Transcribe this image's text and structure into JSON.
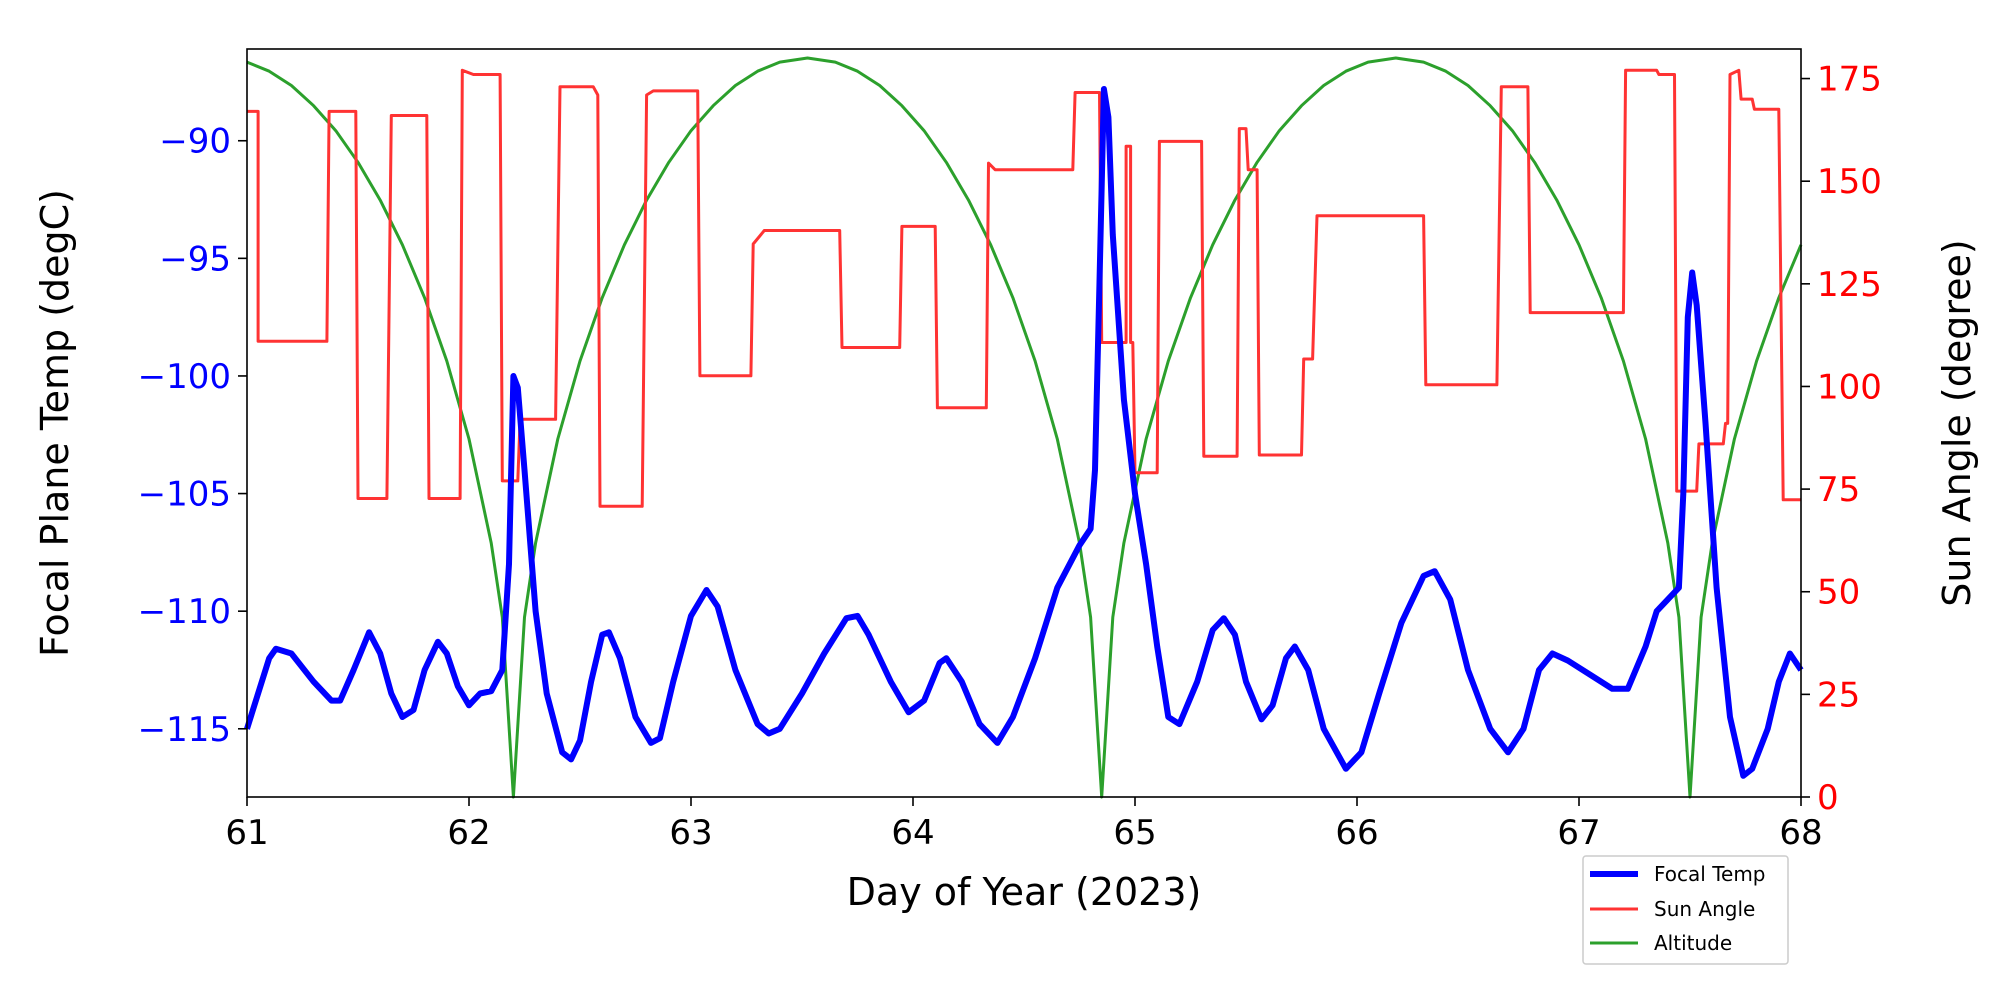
{
  "chart_data": {
    "type": "line",
    "xlabel": "Day of Year (2023)",
    "ylabel_left": "Focal Plane Temp (degC)",
    "ylabel_right": "Sun Angle (degree)",
    "xlim": [
      61,
      68
    ],
    "ylim_left": [
      -117.9,
      -86.1
    ],
    "ylim_right": [
      0,
      182.2
    ],
    "x_ticks": [
      61,
      62,
      63,
      64,
      65,
      66,
      67,
      68
    ],
    "y_ticks_left": [
      -90,
      -95,
      -100,
      -105,
      -110,
      -115
    ],
    "y_ticks_right": [
      0,
      25,
      50,
      75,
      100,
      125,
      150,
      175
    ],
    "left_axis_color": "#0000ff",
    "right_axis_color": "#ff0000",
    "grid": false,
    "legend_placement": "bottom-right, below plot",
    "series": [
      {
        "name": "Focal Temp",
        "axis": "left",
        "color": "#0000ff",
        "x": [
          61.0,
          61.1,
          61.13,
          61.2,
          61.3,
          61.38,
          61.42,
          61.48,
          61.55,
          61.6,
          61.65,
          61.7,
          61.75,
          61.8,
          61.86,
          61.9,
          61.95,
          62.0,
          62.05,
          62.1,
          62.15,
          62.18,
          62.2,
          62.22,
          62.25,
          62.3,
          62.35,
          62.42,
          62.46,
          62.5,
          62.55,
          62.6,
          62.63,
          62.68,
          62.75,
          62.82,
          62.86,
          62.92,
          63.0,
          63.07,
          63.12,
          63.2,
          63.3,
          63.35,
          63.4,
          63.5,
          63.6,
          63.7,
          63.75,
          63.8,
          63.9,
          63.98,
          64.05,
          64.12,
          64.15,
          64.22,
          64.3,
          64.38,
          64.45,
          64.55,
          64.65,
          64.75,
          64.8,
          64.82,
          64.84,
          64.86,
          64.88,
          64.9,
          64.95,
          65.0,
          65.05,
          65.1,
          65.15,
          65.2,
          65.28,
          65.35,
          65.4,
          65.45,
          65.5,
          65.57,
          65.62,
          65.68,
          65.72,
          65.78,
          65.85,
          65.95,
          66.02,
          66.1,
          66.2,
          66.3,
          66.35,
          66.42,
          66.5,
          66.6,
          66.68,
          66.75,
          66.82,
          66.88,
          66.95,
          67.05,
          67.15,
          67.22,
          67.3,
          67.35,
          67.4,
          67.45,
          67.47,
          67.49,
          67.51,
          67.53,
          67.57,
          67.62,
          67.68,
          67.74,
          67.78,
          67.85,
          67.9,
          67.95,
          68.0
        ],
        "y": [
          -115,
          -112,
          -111.6,
          -111.8,
          -113,
          -113.8,
          -113.8,
          -112.5,
          -110.9,
          -111.8,
          -113.5,
          -114.5,
          -114.2,
          -112.5,
          -111.3,
          -111.8,
          -113.2,
          -114,
          -113.5,
          -113.4,
          -112.5,
          -108,
          -100,
          -100.5,
          -104,
          -110,
          -113.5,
          -116,
          -116.3,
          -115.5,
          -113,
          -111,
          -110.9,
          -112,
          -114.5,
          -115.6,
          -115.4,
          -113,
          -110.2,
          -109.1,
          -109.8,
          -112.5,
          -114.8,
          -115.2,
          -115,
          -113.5,
          -111.8,
          -110.3,
          -110.2,
          -111,
          -113,
          -114.3,
          -113.8,
          -112.2,
          -112,
          -113,
          -114.8,
          -115.6,
          -114.5,
          -112,
          -109,
          -107.2,
          -106.5,
          -104,
          -96,
          -87.8,
          -89,
          -94,
          -101,
          -105,
          -108,
          -111.5,
          -114.5,
          -114.8,
          -113,
          -110.8,
          -110.3,
          -111,
          -113,
          -114.6,
          -114,
          -112,
          -111.5,
          -112.5,
          -115,
          -116.7,
          -116,
          -113.5,
          -110.5,
          -108.5,
          -108.3,
          -109.5,
          -112.5,
          -115,
          -116,
          -115,
          -112.5,
          -111.8,
          -112.1,
          -112.7,
          -113.3,
          -113.3,
          -111.5,
          -110,
          -109.5,
          -109,
          -105,
          -97.5,
          -95.6,
          -97,
          -102,
          -109,
          -114.5,
          -117,
          -116.7,
          -115,
          -113,
          -111.8,
          -112.5
        ]
      },
      {
        "name": "Sun Angle",
        "axis": "right",
        "color": "#ff3333",
        "x": [
          61.0,
          61.05,
          61.05,
          61.36,
          61.37,
          61.49,
          61.5,
          61.63,
          61.65,
          61.81,
          61.82,
          61.96,
          61.97,
          62.02,
          62.14,
          62.15,
          62.22,
          62.23,
          62.39,
          62.41,
          62.56,
          62.58,
          62.59,
          62.78,
          62.8,
          62.83,
          63.03,
          63.04,
          63.27,
          63.28,
          63.33,
          63.67,
          63.68,
          63.94,
          63.95,
          64.1,
          64.11,
          64.33,
          64.34,
          64.37,
          64.72,
          64.73,
          64.84,
          64.85,
          64.96,
          64.96,
          64.98,
          64.98,
          64.99,
          65.0,
          65.1,
          65.11,
          65.3,
          65.31,
          65.46,
          65.47,
          65.5,
          65.51,
          65.55,
          65.56,
          65.75,
          65.76,
          65.8,
          65.82,
          66.3,
          66.31,
          66.63,
          66.65,
          66.77,
          66.78,
          67.2,
          67.21,
          67.35,
          67.36,
          67.43,
          67.44,
          67.53,
          67.54,
          67.65,
          67.66,
          67.67,
          67.68,
          67.72,
          67.73,
          67.78,
          67.79,
          67.9,
          67.92,
          68.0
        ],
        "y": [
          167,
          167,
          111,
          111,
          167,
          167,
          72.7,
          72.7,
          166,
          166,
          72.7,
          72.7,
          177,
          176,
          176,
          77,
          77,
          92,
          92,
          173,
          173,
          171,
          70.8,
          70.8,
          171,
          172,
          172,
          102.6,
          102.6,
          134.7,
          138,
          138,
          109.5,
          109.5,
          139,
          139,
          94.8,
          94.8,
          154.4,
          152.8,
          152.8,
          171.6,
          171.6,
          110.7,
          110.7,
          158.5,
          158.5,
          110.7,
          110.7,
          79,
          79,
          159.7,
          159.7,
          83,
          83,
          162.8,
          162.8,
          152.8,
          152.8,
          83.3,
          83.3,
          106.7,
          106.7,
          141.6,
          141.6,
          100.4,
          100.4,
          173,
          173,
          118,
          118,
          177,
          177,
          176,
          176,
          74.5,
          74.5,
          86,
          86,
          91,
          91,
          176,
          177,
          170,
          170,
          167.5,
          167.5,
          72.4,
          72.4
        ]
      },
      {
        "name": "Altitude",
        "axis": "right",
        "color": "#2ca02c",
        "x": [
          61.0,
          61.1,
          61.2,
          61.3,
          61.4,
          61.5,
          61.6,
          61.7,
          61.8,
          61.9,
          62.0,
          62.1,
          62.15,
          62.2,
          62.25,
          62.3,
          62.4,
          62.5,
          62.6,
          62.7,
          62.8,
          62.9,
          63.0,
          63.1,
          63.2,
          63.3,
          63.4,
          63.525,
          63.65,
          63.75,
          63.85,
          63.95,
          64.05,
          64.15,
          64.25,
          64.35,
          64.45,
          64.55,
          64.65,
          64.75,
          64.8,
          64.85,
          64.9,
          64.95,
          65.05,
          65.15,
          65.25,
          65.35,
          65.45,
          65.55,
          65.65,
          65.75,
          65.85,
          65.95,
          66.05,
          66.175,
          66.3,
          66.4,
          66.5,
          66.6,
          66.7,
          66.8,
          66.9,
          67.0,
          67.1,
          67.2,
          67.3,
          67.4,
          67.45,
          67.5,
          67.55,
          67.6,
          67.7,
          67.8,
          67.9,
          68.0
        ],
        "y": [
          179.0,
          176.8,
          173.3,
          168.4,
          162.3,
          154.6,
          145.4,
          134.5,
          121.6,
          106.2,
          87.2,
          61.9,
          43.8,
          0,
          43.8,
          61.9,
          87.2,
          106.2,
          121.6,
          134.5,
          145.4,
          154.6,
          162.3,
          168.4,
          173.3,
          176.8,
          179.0,
          180,
          179.0,
          176.8,
          173.3,
          168.4,
          162.3,
          154.6,
          145.4,
          134.5,
          121.6,
          106.2,
          87.2,
          61.9,
          43.8,
          0,
          43.8,
          61.9,
          87.2,
          106.2,
          121.6,
          134.5,
          145.4,
          154.6,
          162.3,
          168.4,
          173.3,
          176.8,
          179.0,
          180,
          179.0,
          176.8,
          173.3,
          168.4,
          162.3,
          154.6,
          145.4,
          134.5,
          121.6,
          106.2,
          87.2,
          61.9,
          43.8,
          0,
          43.8,
          61.9,
          87.2,
          106.2,
          121.6,
          134.5
        ]
      }
    ],
    "legend": [
      "Focal Temp",
      "Sun Angle",
      "Altitude"
    ]
  }
}
